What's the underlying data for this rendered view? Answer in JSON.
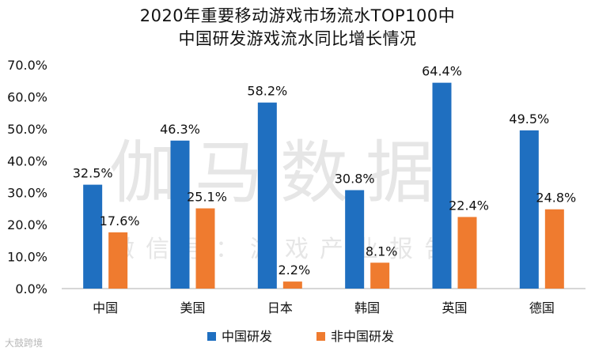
{
  "title": {
    "line1": "2020年重要移动游戏市场流水TOP100中",
    "line2": "中国研发游戏流水同比增长情况"
  },
  "watermark": {
    "main": "伽马数据",
    "sub": "微信号：游戏产业报告"
  },
  "credit": "大鼓跨境",
  "colors": {
    "series1": "#1f6fc0",
    "series2": "#ef7b2f",
    "axis": "#bfbfbf",
    "text": "#111111"
  },
  "chart_data": {
    "type": "bar",
    "title": "2020年重要移动游戏市场流水TOP100中中国研发游戏流水同比增长情况",
    "categories": [
      "中国",
      "美国",
      "日本",
      "韩国",
      "英国",
      "德国"
    ],
    "series": [
      {
        "name": "中国研发",
        "values": [
          32.5,
          46.3,
          58.2,
          30.8,
          64.4,
          49.5
        ],
        "labels": [
          "32.5%",
          "46.3%",
          "58.2%",
          "30.8%",
          "64.4%",
          "49.5%"
        ]
      },
      {
        "name": "非中国研发",
        "values": [
          17.6,
          25.1,
          2.2,
          8.1,
          22.4,
          24.8
        ],
        "labels": [
          "17.6%",
          "25.1%",
          "2.2%",
          "8.1%",
          "22.4%",
          "24.8%"
        ]
      }
    ],
    "ylim": [
      0,
      70
    ],
    "yticks": [
      "0.0%",
      "10.0%",
      "20.0%",
      "30.0%",
      "40.0%",
      "50.0%",
      "60.0%",
      "70.0%"
    ],
    "xlabel": "",
    "ylabel": "",
    "grid": false,
    "legend": "bottom-center"
  }
}
